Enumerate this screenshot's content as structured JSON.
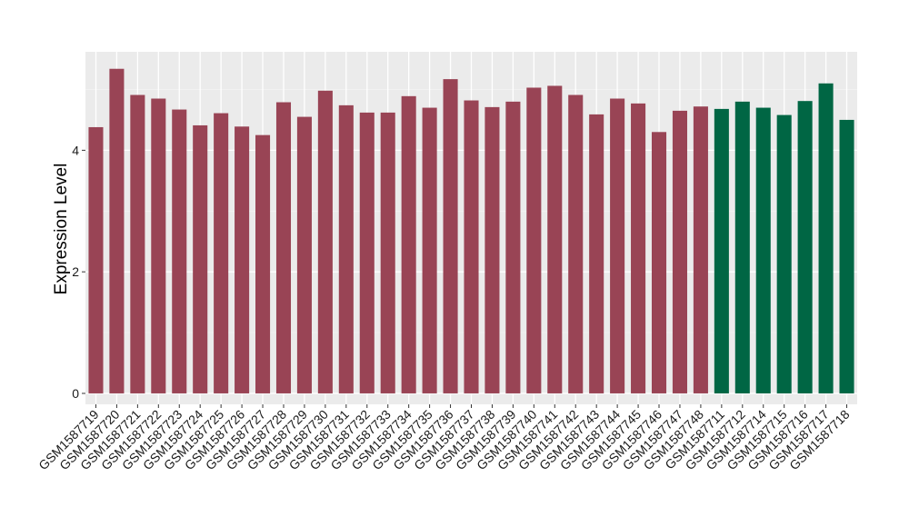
{
  "chart_data": {
    "type": "bar",
    "title": "",
    "xlabel": "",
    "ylabel": "Expression Level",
    "ylim": [
      -0.18,
      5.62
    ],
    "yticks": [
      0,
      2,
      4
    ],
    "grid": true,
    "legend": "none",
    "colors": {
      "panel_background": "#ebebeb",
      "grid_major": "#ffffff",
      "grid_minor": "#f5f5f5",
      "group_1": "#994455",
      "group_2": "#006644"
    },
    "categories": [
      "GSM1587719",
      "GSM1587720",
      "GSM1587721",
      "GSM1587722",
      "GSM1587723",
      "GSM1587724",
      "GSM1587725",
      "GSM1587726",
      "GSM1587727",
      "GSM1587728",
      "GSM1587729",
      "GSM1587730",
      "GSM1587731",
      "GSM1587732",
      "GSM1587733",
      "GSM1587734",
      "GSM1587735",
      "GSM1587736",
      "GSM1587737",
      "GSM1587738",
      "GSM1587739",
      "GSM1587740",
      "GSM1587741",
      "GSM1587742",
      "GSM1587743",
      "GSM1587744",
      "GSM1587745",
      "GSM1587746",
      "GSM1587747",
      "GSM1587748",
      "GSM1587711",
      "GSM1587712",
      "GSM1587714",
      "GSM1587715",
      "GSM1587716",
      "GSM1587717",
      "GSM1587718"
    ],
    "values": [
      4.38,
      5.34,
      4.91,
      4.85,
      4.67,
      4.41,
      4.61,
      4.39,
      4.25,
      4.79,
      4.55,
      4.98,
      4.74,
      4.62,
      4.62,
      4.89,
      4.7,
      5.17,
      4.82,
      4.71,
      4.8,
      5.03,
      5.06,
      4.91,
      4.59,
      4.85,
      4.77,
      4.3,
      4.65,
      4.72,
      4.68,
      4.8,
      4.7,
      4.58,
      4.81,
      5.1,
      4.5
    ],
    "groups": [
      1,
      1,
      1,
      1,
      1,
      1,
      1,
      1,
      1,
      1,
      1,
      1,
      1,
      1,
      1,
      1,
      1,
      1,
      1,
      1,
      1,
      1,
      1,
      1,
      1,
      1,
      1,
      1,
      1,
      1,
      2,
      2,
      2,
      2,
      2,
      2,
      2
    ]
  }
}
